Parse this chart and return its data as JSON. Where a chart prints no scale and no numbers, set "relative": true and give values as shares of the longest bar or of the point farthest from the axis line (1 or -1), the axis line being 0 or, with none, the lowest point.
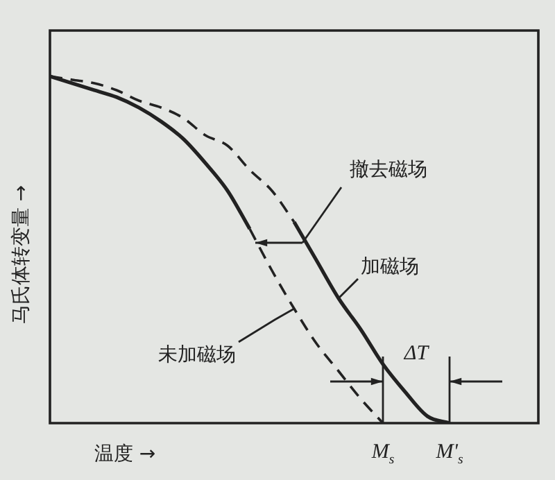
{
  "chart_data": {
    "type": "line",
    "relative": true,
    "xlabel": "温度 →",
    "ylabel": "马氏体转变量 →",
    "marker": "none",
    "legend": false,
    "categories": [
      null,
      null,
      null,
      null,
      null,
      null,
      null,
      null,
      null,
      null,
      null,
      null,
      null,
      null,
      null,
      null,
      null,
      null,
      null,
      null,
      null,
      null,
      null
    ],
    "series": [
      {
        "color": "#222222",
        "line_style": "solid",
        "values": [
          1,
          0.98,
          0.96,
          0.94,
          0.91,
          0.87,
          0.82,
          0.75,
          0.67,
          0.56,
          null,
          null,
          null,
          null,
          null,
          null,
          null,
          null,
          null,
          null,
          null,
          null,
          null
        ]
      },
      {
        "name": "未加磁场",
        "color": "#222222",
        "line_style": "dashed",
        "values": [
          null,
          null,
          null,
          null,
          null,
          null,
          null,
          null,
          null,
          0.56,
          0.44,
          0.33,
          0.23,
          0.15,
          0.07,
          0,
          null,
          null,
          null,
          null,
          null,
          null,
          null
        ]
      },
      {
        "color": "#222222",
        "line_style": "dashed",
        "values": [
          1,
          0.99,
          0.98,
          0.96,
          0.93,
          0.91,
          0.88,
          0.83,
          0.8,
          0.73,
          0.67,
          0.58,
          null,
          null,
          null,
          null,
          null,
          null,
          null,
          null,
          null,
          null,
          null
        ]
      },
      {
        "name": "加磁场",
        "color": "#222222",
        "line_style": "solid",
        "values": [
          null,
          null,
          null,
          null,
          null,
          null,
          null,
          null,
          null,
          null,
          null,
          0.58,
          0.47,
          0.36,
          0.27,
          0.17,
          0.09,
          0.02,
          0,
          null,
          null,
          null,
          null
        ]
      }
    ],
    "annotations": [
      "撤去磁场",
      "ΔT",
      "M$_{s}$",
      "M'$_{s}$"
    ]
  }
}
